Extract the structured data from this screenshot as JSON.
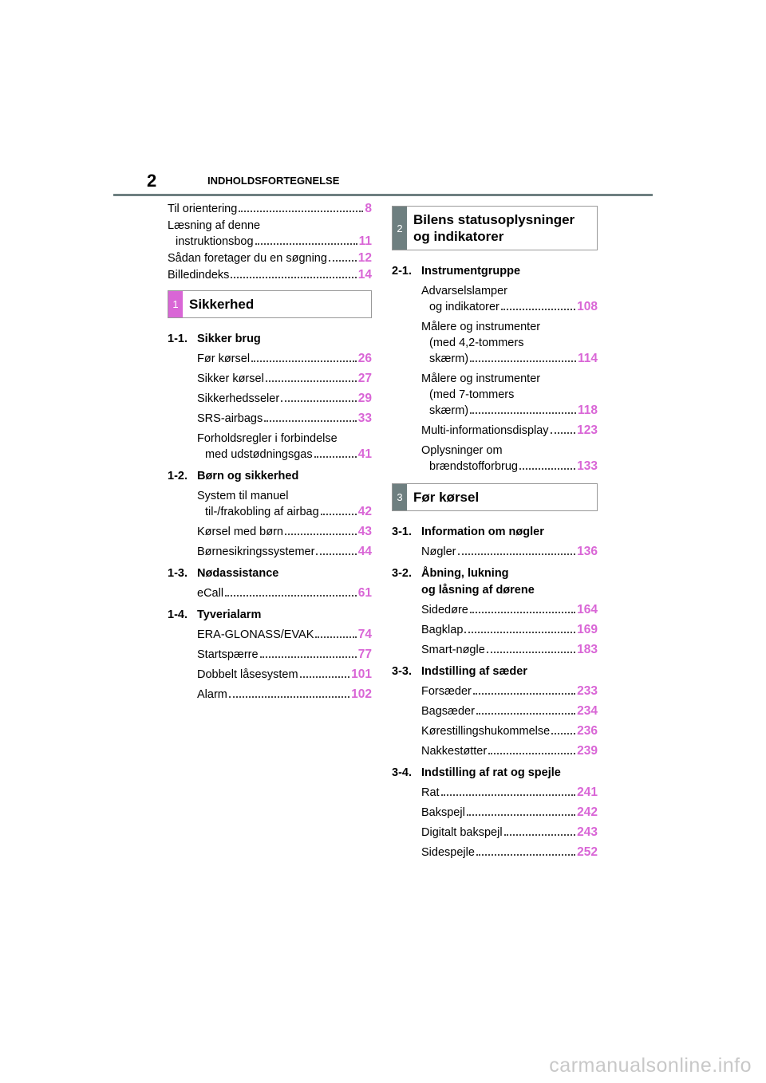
{
  "header": {
    "page_number": "2",
    "title": "INDHOLDSFORTEGNELSE"
  },
  "intro": [
    {
      "lines": [
        "Til orientering"
      ],
      "page": "8"
    },
    {
      "lines": [
        "Læsning af denne",
        "instruktionsbog"
      ],
      "page": "11"
    },
    {
      "lines": [
        "Sådan foretager du en søgning"
      ],
      "page": "12"
    },
    {
      "lines": [
        "Billedindeks"
      ],
      "page": "14"
    }
  ],
  "sections": [
    {
      "number": "1",
      "title": [
        "Sikkerhed"
      ],
      "subsections": [
        {
          "number": "1-1.",
          "title": [
            "Sikker brug"
          ],
          "entries": [
            {
              "lines": [
                "Før kørsel"
              ],
              "page": "26"
            },
            {
              "lines": [
                "Sikker kørsel"
              ],
              "page": "27"
            },
            {
              "lines": [
                "Sikkerhedsseler"
              ],
              "page": "29"
            },
            {
              "lines": [
                "SRS-airbags"
              ],
              "page": "33"
            },
            {
              "lines": [
                "Forholdsregler i forbindelse",
                "med udstødningsgas"
              ],
              "page": "41"
            }
          ]
        },
        {
          "number": "1-2.",
          "title": [
            "Børn og sikkerhed"
          ],
          "entries": [
            {
              "lines": [
                "System til manuel",
                "til-/frakobling af airbag"
              ],
              "page": "42"
            },
            {
              "lines": [
                "Kørsel med børn"
              ],
              "page": "43"
            },
            {
              "lines": [
                "Børnesikringssystemer"
              ],
              "page": "44"
            }
          ]
        },
        {
          "number": "1-3.",
          "title": [
            "Nødassistance"
          ],
          "entries": [
            {
              "lines": [
                "eCall"
              ],
              "page": "61"
            }
          ]
        },
        {
          "number": "1-4.",
          "title": [
            "Tyverialarm"
          ],
          "entries": [
            {
              "lines": [
                "ERA-GLONASS/EVAK"
              ],
              "page": "74"
            },
            {
              "lines": [
                "Startspærre"
              ],
              "page": "77"
            },
            {
              "lines": [
                "Dobbelt låsesystem"
              ],
              "page": "101"
            },
            {
              "lines": [
                "Alarm"
              ],
              "page": "102"
            }
          ]
        }
      ]
    },
    {
      "number": "2",
      "title": [
        "Bilens statusoplysninger",
        "og indikatorer"
      ],
      "subsections": [
        {
          "number": "2-1.",
          "title": [
            "Instrumentgruppe"
          ],
          "entries": [
            {
              "lines": [
                "Advarselslamper",
                "og indikatorer"
              ],
              "page": "108"
            },
            {
              "lines": [
                "Målere og instrumenter",
                "(med 4,2-tommers",
                "skærm)"
              ],
              "page": "114"
            },
            {
              "lines": [
                "Målere og instrumenter",
                "(med 7-tommers",
                "skærm)"
              ],
              "page": "118"
            },
            {
              "lines": [
                "Multi-informationsdisplay"
              ],
              "page": "123"
            },
            {
              "lines": [
                "Oplysninger om",
                "brændstofforbrug"
              ],
              "page": "133"
            }
          ]
        }
      ]
    },
    {
      "number": "3",
      "title": [
        "Før kørsel"
      ],
      "subsections": [
        {
          "number": "3-1.",
          "title": [
            "Information om nøgler"
          ],
          "entries": [
            {
              "lines": [
                "Nøgler"
              ],
              "page": "136"
            }
          ]
        },
        {
          "number": "3-2.",
          "title": [
            "Åbning, lukning",
            "og låsning af dørene"
          ],
          "entries": [
            {
              "lines": [
                "Sidedøre"
              ],
              "page": "164"
            },
            {
              "lines": [
                "Bagklap"
              ],
              "page": "169"
            },
            {
              "lines": [
                "Smart-nøgle"
              ],
              "page": "183"
            }
          ]
        },
        {
          "number": "3-3.",
          "title": [
            "Indstilling af sæder"
          ],
          "entries": [
            {
              "lines": [
                "Forsæder"
              ],
              "page": "233"
            },
            {
              "lines": [
                "Bagsæder"
              ],
              "page": "234"
            },
            {
              "lines": [
                "Kørestillingshukommelse"
              ],
              "page": "236"
            },
            {
              "lines": [
                "Nakkestøtter"
              ],
              "page": "239"
            }
          ]
        },
        {
          "number": "3-4.",
          "title": [
            "Indstilling af rat og spejle"
          ],
          "entries": [
            {
              "lines": [
                "Rat"
              ],
              "page": "241"
            },
            {
              "lines": [
                "Bakspejl"
              ],
              "page": "242"
            },
            {
              "lines": [
                "Digitalt bakspejl"
              ],
              "page": "243"
            },
            {
              "lines": [
                "Sidespejle"
              ],
              "page": "252"
            }
          ]
        }
      ]
    }
  ],
  "watermark": "carmanualsonline.info"
}
